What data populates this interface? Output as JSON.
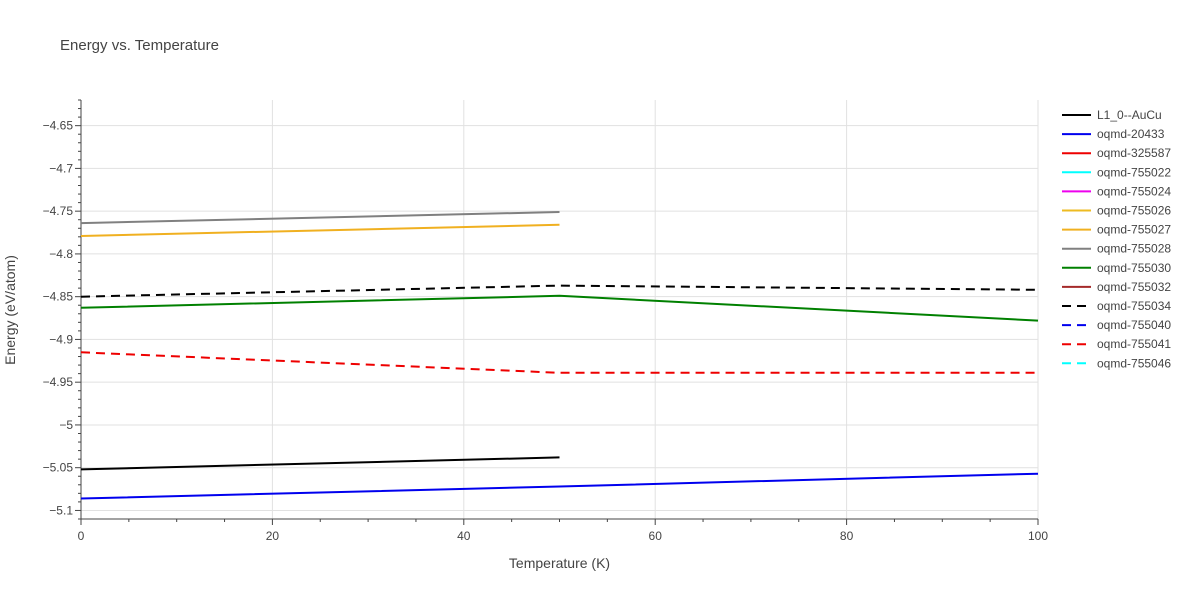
{
  "chart_data": {
    "type": "line",
    "title": "Energy vs. Temperature",
    "xlabel": "Temperature (K)",
    "ylabel": "Energy (eV/atom)",
    "xlim": [
      0,
      100
    ],
    "ylim": [
      -5.11,
      -4.62
    ],
    "x_ticks": [
      0,
      20,
      40,
      60,
      80,
      100
    ],
    "y_ticks": [
      -4.65,
      -4.7,
      -4.75,
      -4.8,
      -4.85,
      -4.9,
      -4.95,
      -5,
      -5.05,
      -5.1
    ],
    "y_tick_labels": [
      "−4.65",
      "−4.7",
      "−4.75",
      "−4.8",
      "−4.85",
      "−4.9",
      "−4.95",
      "−5",
      "−5.05",
      "−5.1"
    ],
    "grid": true,
    "legend_position": "right",
    "series": [
      {
        "name": "L1_0--AuCu",
        "color": "#000000",
        "dash": "solid",
        "x": [
          0,
          50
        ],
        "y": [
          -5.052,
          -5.038
        ]
      },
      {
        "name": "oqmd-20433",
        "color": "#0000ee",
        "dash": "solid",
        "x": [
          0,
          50,
          100
        ],
        "y": [
          -5.086,
          -5.072,
          -5.057
        ]
      },
      {
        "name": "oqmd-325587",
        "color": "#ee0000",
        "dash": "solid",
        "x": [],
        "y": []
      },
      {
        "name": "oqmd-755022",
        "color": "#00ffff",
        "dash": "solid",
        "x": [],
        "y": []
      },
      {
        "name": "oqmd-755024",
        "color": "#ee00ee",
        "dash": "solid",
        "x": [],
        "y": []
      },
      {
        "name": "oqmd-755026",
        "color": "#eebb22",
        "dash": "solid",
        "x": [],
        "y": []
      },
      {
        "name": "oqmd-755027",
        "color": "#f0b020",
        "dash": "solid",
        "x": [
          0,
          50
        ],
        "y": [
          -4.779,
          -4.766
        ]
      },
      {
        "name": "oqmd-755028",
        "color": "#808080",
        "dash": "solid",
        "x": [
          0,
          50
        ],
        "y": [
          -4.764,
          -4.751
        ]
      },
      {
        "name": "oqmd-755030",
        "color": "#008000",
        "dash": "solid",
        "x": [
          0,
          50,
          100
        ],
        "y": [
          -4.863,
          -4.849,
          -4.878
        ]
      },
      {
        "name": "oqmd-755032",
        "color": "#a52a2a",
        "dash": "solid",
        "x": [],
        "y": []
      },
      {
        "name": "oqmd-755034",
        "color": "#000000",
        "dash": "dash",
        "x": [
          0,
          50,
          100
        ],
        "y": [
          -4.85,
          -4.837,
          -4.842
        ]
      },
      {
        "name": "oqmd-755040",
        "color": "#0000ee",
        "dash": "dash",
        "x": [],
        "y": []
      },
      {
        "name": "oqmd-755041",
        "color": "#ee0000",
        "dash": "dash",
        "x": [
          0,
          50,
          100
        ],
        "y": [
          -4.915,
          -4.939,
          -4.939
        ]
      },
      {
        "name": "oqmd-755046",
        "color": "#00ffff",
        "dash": "dash",
        "x": [],
        "y": []
      }
    ]
  }
}
